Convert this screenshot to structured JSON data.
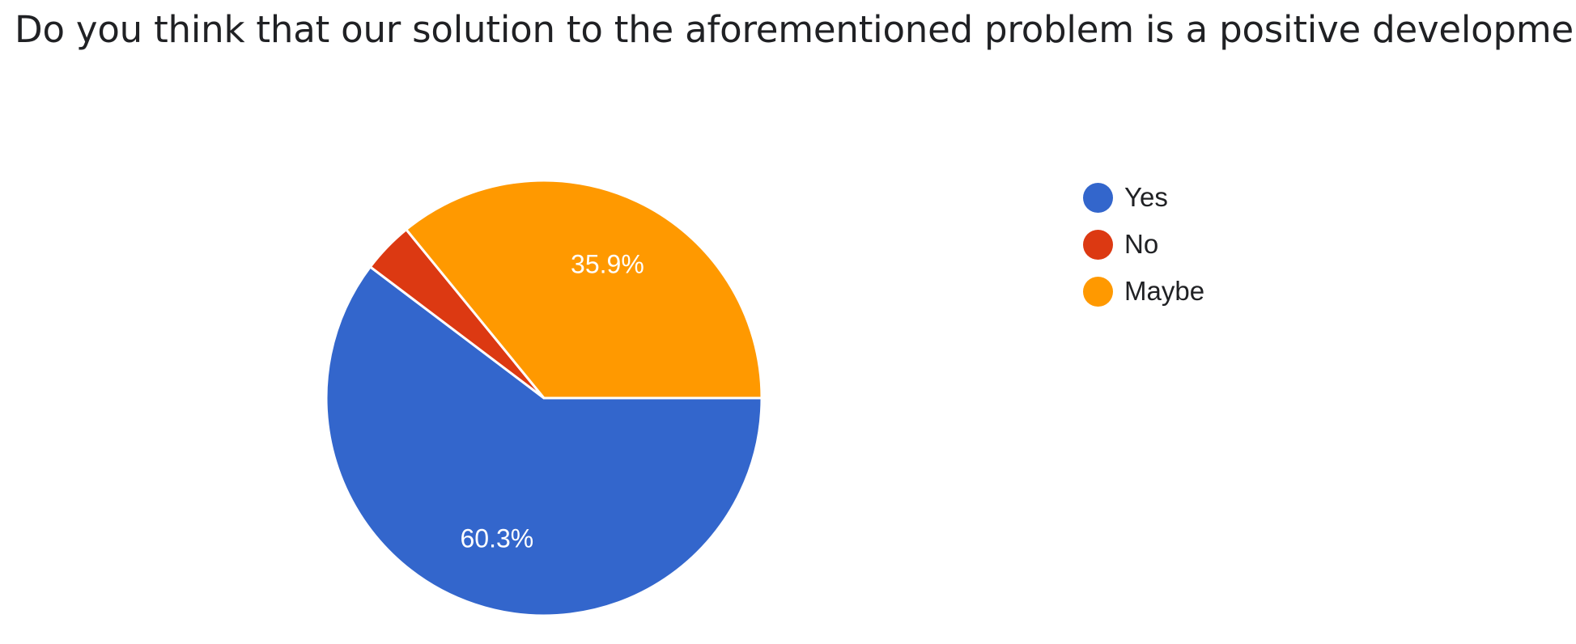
{
  "chart_data": {
    "type": "pie",
    "title": "Do you think that our solution to the aforementioned problem is a positive development?",
    "slices": [
      {
        "label": "Yes",
        "value": 60.3,
        "display": "60.3%",
        "color": "#3366cc"
      },
      {
        "label": "No",
        "value": 3.8,
        "display": "",
        "color": "#dc3912"
      },
      {
        "label": "Maybe",
        "value": 35.9,
        "display": "35.9%",
        "color": "#ff9900"
      }
    ],
    "legend_position": "right"
  }
}
